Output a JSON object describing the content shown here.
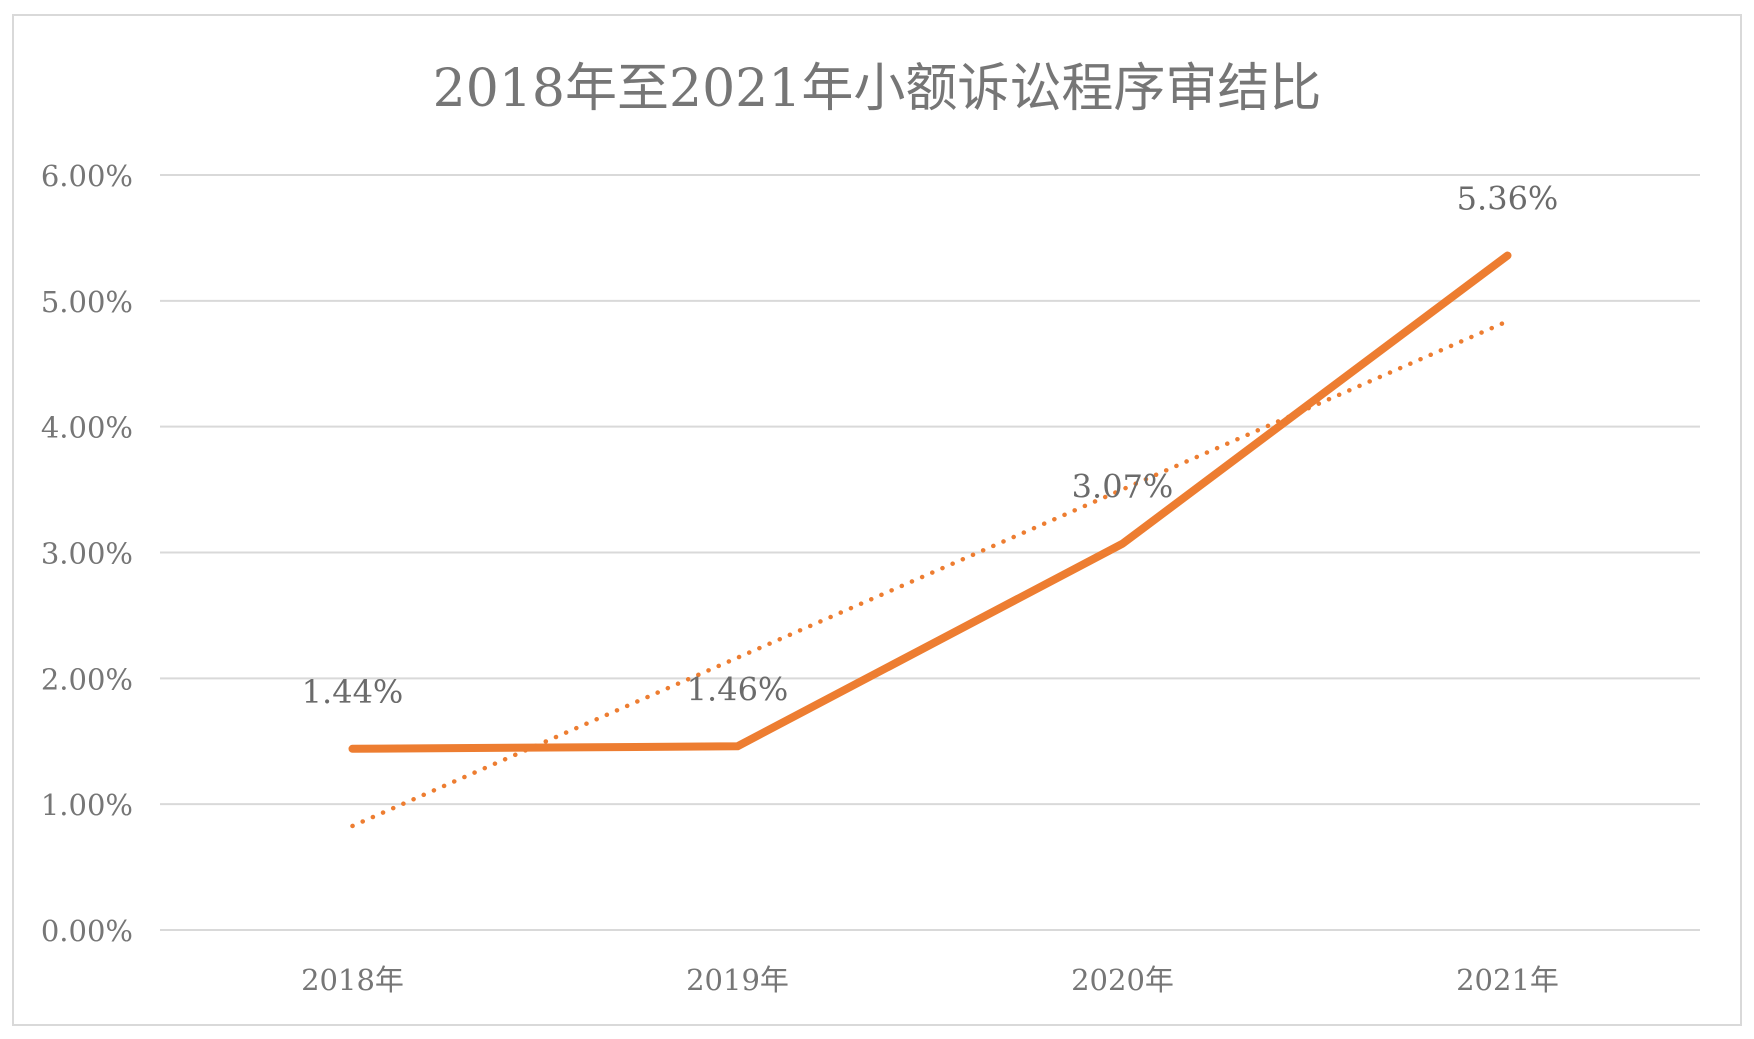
{
  "chart_data": {
    "type": "line",
    "title": "2018年至2021年小额诉讼程序审结比",
    "categories": [
      "2018年",
      "2019年",
      "2020年",
      "2021年"
    ],
    "series": [
      {
        "values": [
          1.44,
          1.46,
          3.07,
          5.36
        ],
        "labels": [
          "1.44%",
          "1.46%",
          "3.07%",
          "5.36%"
        ],
        "color": "#ed7d31",
        "style": "solid"
      }
    ],
    "trendline": {
      "type": "linear",
      "style": "dotted",
      "color": "#ed7d31"
    },
    "yticks": [
      "0.00%",
      "1.00%",
      "2.00%",
      "3.00%",
      "4.00%",
      "5.00%",
      "6.00%"
    ],
    "ylim": [
      0,
      6
    ],
    "grid": true,
    "legend": "none"
  }
}
